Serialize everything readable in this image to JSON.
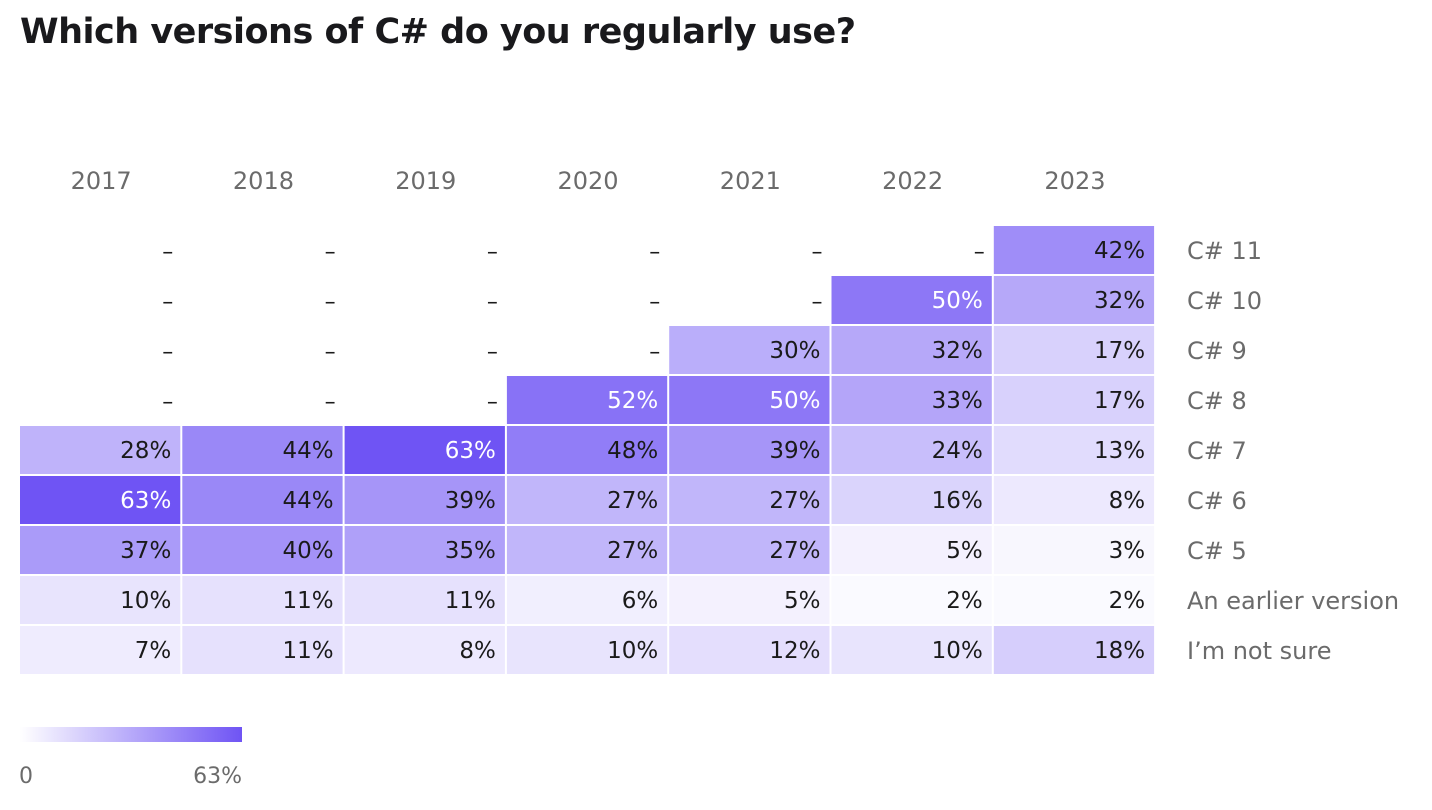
{
  "title": "Which versions of C# do you regularly use?",
  "chart_data": {
    "type": "heatmap",
    "title": "Which versions of C# do you regularly use?",
    "columns": [
      "2017",
      "2018",
      "2019",
      "2020",
      "2021",
      "2022",
      "2023"
    ],
    "rows": [
      "C# 11",
      "C# 10",
      "C# 9",
      "C# 8",
      "C# 7",
      "C# 6",
      "C# 5",
      "An earlier version",
      "I’m not sure"
    ],
    "unit": "%",
    "missing_symbol": "–",
    "values": [
      [
        null,
        null,
        null,
        null,
        null,
        null,
        42
      ],
      [
        null,
        null,
        null,
        null,
        null,
        50,
        32
      ],
      [
        null,
        null,
        null,
        null,
        30,
        32,
        17
      ],
      [
        null,
        null,
        null,
        52,
        50,
        33,
        17
      ],
      [
        28,
        44,
        63,
        48,
        39,
        24,
        13
      ],
      [
        63,
        44,
        39,
        27,
        27,
        16,
        8
      ],
      [
        37,
        40,
        35,
        27,
        27,
        5,
        3
      ],
      [
        10,
        11,
        11,
        6,
        5,
        2,
        2
      ],
      [
        7,
        11,
        8,
        10,
        12,
        10,
        18
      ]
    ],
    "color_scale": {
      "min": 0,
      "max": 63,
      "min_label": "0",
      "max_label": "63%",
      "min_color": "#ffffff",
      "max_color": "#6f54f4"
    },
    "label_colors": {
      "dark": "#1a1a1a",
      "light": "#ffffff"
    }
  }
}
